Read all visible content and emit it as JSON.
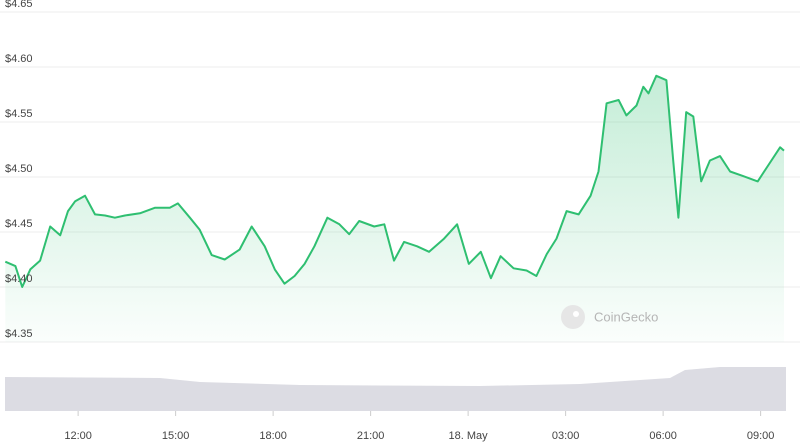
{
  "chart_data": {
    "type": "area",
    "watermark": "CoinGecko",
    "x": [
      9.76,
      10.07,
      10.28,
      10.53,
      10.83,
      11.14,
      11.45,
      11.69,
      11.91,
      12.21,
      12.52,
      12.83,
      13.13,
      13.44,
      13.9,
      14.36,
      14.82,
      15.07,
      15.44,
      15.74,
      16.11,
      16.51,
      16.97,
      17.34,
      17.74,
      18.05,
      18.35,
      18.66,
      18.97,
      19.27,
      19.67,
      20.04,
      20.34,
      20.65,
      21.11,
      21.42,
      21.72,
      22.03,
      22.43,
      22.8,
      23.26,
      23.66,
      24.02,
      24.39,
      24.7,
      25.0,
      25.4,
      25.8,
      26.1,
      26.42,
      26.72,
      27.03,
      27.4,
      27.77,
      28.01,
      28.26,
      28.63,
      28.87,
      29.18,
      29.39,
      29.55,
      29.79,
      30.1,
      30.31,
      30.47,
      30.71,
      30.93,
      31.17,
      31.44,
      31.75,
      32.06,
      32.45,
      32.91,
      33.22,
      33.6,
      33.72
    ],
    "series": [
      {
        "name": "Price",
        "color": "#2fbf71",
        "values": [
          4.423,
          4.419,
          4.4,
          4.416,
          4.424,
          4.455,
          4.447,
          4.469,
          4.478,
          4.483,
          4.466,
          4.465,
          4.463,
          4.465,
          4.467,
          4.472,
          4.472,
          4.476,
          4.463,
          4.452,
          4.429,
          4.425,
          4.434,
          4.455,
          4.437,
          4.416,
          4.403,
          4.41,
          4.421,
          4.437,
          4.463,
          4.457,
          4.448,
          4.46,
          4.455,
          4.457,
          4.424,
          4.441,
          4.437,
          4.432,
          4.444,
          4.457,
          4.421,
          4.432,
          4.408,
          4.428,
          4.417,
          4.415,
          4.41,
          4.43,
          4.444,
          4.469,
          4.466,
          4.483,
          4.505,
          4.567,
          4.57,
          4.556,
          4.565,
          4.582,
          4.576,
          4.592,
          4.588,
          4.515,
          4.463,
          4.559,
          4.555,
          4.496,
          4.515,
          4.519,
          4.505,
          4.501,
          4.496,
          4.51,
          4.527,
          4.524
        ]
      }
    ],
    "xlim": [
      9.75,
      33.75
    ],
    "xticks": [
      {
        "value": 12,
        "label": "12:00"
      },
      {
        "value": 15,
        "label": "15:00"
      },
      {
        "value": 18,
        "label": "18:00"
      },
      {
        "value": 21,
        "label": "21:00"
      },
      {
        "value": 24,
        "label": "18. May"
      },
      {
        "value": 27,
        "label": "03:00"
      },
      {
        "value": 30,
        "label": "06:00"
      },
      {
        "value": 33,
        "label": "09:00"
      }
    ],
    "ylim": [
      4.35,
      4.65
    ],
    "yticks": [
      {
        "value": 4.35,
        "label": "$4.35"
      },
      {
        "value": 4.4,
        "label": "$4.40"
      },
      {
        "value": 4.45,
        "label": "$4.45"
      },
      {
        "value": 4.5,
        "label": "$4.50"
      },
      {
        "value": 4.55,
        "label": "$4.55"
      },
      {
        "value": 4.6,
        "label": "$4.60"
      },
      {
        "value": 4.65,
        "label": "$4.65"
      }
    ],
    "grid": true
  }
}
